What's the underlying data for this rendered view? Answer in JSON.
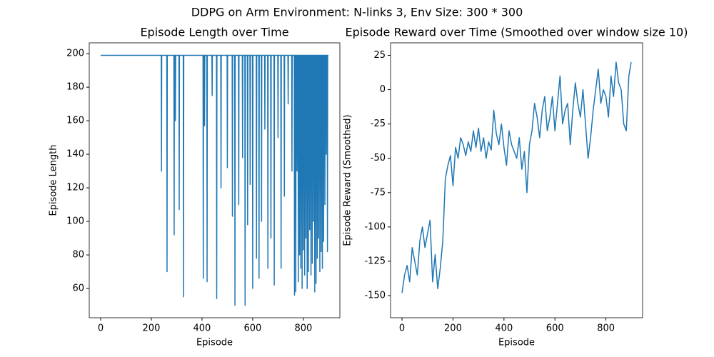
{
  "title": "DDPG on Arm Environment: N-links 3, Env Size: 300 * 300",
  "chart_data": [
    {
      "type": "line",
      "title": "Episode Length over Time",
      "x_label": "Episode",
      "y_label": "Episode Length",
      "xlim": [
        -45,
        944
      ],
      "ylim": [
        42.55,
        206.45
      ],
      "xticks": [
        0,
        200,
        400,
        600,
        800
      ],
      "yticks": [
        60,
        80,
        100,
        120,
        140,
        160,
        180,
        200
      ],
      "series": [
        {
          "color": "#1f77b4",
          "x": [
            0,
            239,
            240,
            241,
            261,
            262,
            263,
            289,
            290,
            291,
            294,
            295,
            296,
            309,
            310,
            311,
            326,
            327,
            328,
            404,
            405,
            406,
            409,
            410,
            411,
            419,
            420,
            421,
            439,
            440,
            441,
            457,
            458,
            459,
            474,
            475,
            476,
            499,
            500,
            501,
            519,
            520,
            521,
            529,
            530,
            531,
            544,
            545,
            546,
            559,
            560,
            561,
            569,
            570,
            571,
            579,
            580,
            581,
            589,
            590,
            591,
            599,
            600,
            601,
            614,
            615,
            616,
            624,
            625,
            626,
            634,
            635,
            636,
            647,
            648,
            649,
            659,
            660,
            661,
            671,
            672,
            673,
            684,
            685,
            686,
            699,
            700,
            701,
            711,
            712,
            713,
            724,
            725,
            726,
            739,
            740,
            741,
            754,
            755,
            756,
            764,
            765,
            766,
            769,
            770,
            771,
            774,
            775,
            776,
            779,
            780,
            781,
            784,
            785,
            786,
            789,
            790,
            791,
            794,
            795,
            796,
            799,
            800,
            801,
            804,
            805,
            806,
            809,
            810,
            811,
            814,
            815,
            816,
            819,
            820,
            821,
            824,
            825,
            826,
            829,
            830,
            831,
            834,
            835,
            836,
            839,
            840,
            841,
            844,
            845,
            846,
            849,
            850,
            851,
            854,
            855,
            856,
            859,
            860,
            861,
            864,
            865,
            866,
            869,
            870,
            871,
            874,
            875,
            876,
            879,
            880,
            881,
            884,
            885,
            886,
            889,
            890,
            891,
            894,
            895,
            896,
            899
          ],
          "values": [
            199,
            199,
            130,
            199,
            199,
            70,
            199,
            199,
            92,
            199,
            199,
            160,
            199,
            199,
            107,
            199,
            199,
            55,
            199,
            199,
            66,
            199,
            199,
            157,
            199,
            199,
            64,
            199,
            199,
            175,
            199,
            199,
            54,
            199,
            199,
            120,
            199,
            199,
            132,
            199,
            199,
            103,
            199,
            199,
            50,
            199,
            199,
            110,
            199,
            199,
            138,
            199,
            199,
            50,
            199,
            199,
            98,
            199,
            199,
            122,
            199,
            199,
            60,
            199,
            199,
            78,
            199,
            199,
            66,
            199,
            199,
            100,
            199,
            199,
            155,
            199,
            199,
            72,
            199,
            199,
            90,
            199,
            199,
            62,
            199,
            199,
            150,
            199,
            199,
            72,
            199,
            199,
            115,
            199,
            199,
            170,
            199,
            199,
            130,
            199,
            199,
            56,
            199,
            199,
            58,
            199,
            199,
            130,
            199,
            199,
            64,
            199,
            199,
            80,
            199,
            199,
            72,
            199,
            199,
            60,
            199,
            199,
            83,
            199,
            199,
            68,
            199,
            199,
            90,
            199,
            199,
            60,
            199,
            199,
            70,
            199,
            199,
            95,
            199,
            199,
            68,
            199,
            199,
            75,
            199,
            199,
            100,
            199,
            199,
            58,
            199,
            199,
            63,
            199,
            199,
            78,
            199,
            199,
            90,
            199,
            199,
            70,
            199,
            199,
            82,
            199,
            199,
            72,
            199,
            199,
            88,
            199,
            199,
            110,
            199,
            199,
            140,
            199,
            199,
            82,
            199,
            199
          ]
        }
      ]
    },
    {
      "type": "line",
      "title": "Episode Reward over Time (Smoothed over window size 10)",
      "x_label": "Episode",
      "y_label": "Episode Reward (Smoothed)",
      "xlim": [
        -45,
        944
      ],
      "ylim": [
        -166.1,
        34.1
      ],
      "xticks": [
        0,
        200,
        400,
        600,
        800
      ],
      "yticks": [
        -150,
        -125,
        -100,
        -75,
        -50,
        -25,
        0,
        25
      ],
      "series": [
        {
          "color": "#1f77b4",
          "x": [
            0,
            10,
            20,
            30,
            40,
            50,
            60,
            70,
            80,
            90,
            100,
            110,
            120,
            130,
            140,
            150,
            160,
            170,
            180,
            190,
            200,
            210,
            220,
            230,
            240,
            250,
            260,
            270,
            280,
            290,
            300,
            310,
            320,
            330,
            340,
            350,
            360,
            370,
            380,
            390,
            400,
            410,
            420,
            430,
            440,
            450,
            460,
            470,
            480,
            490,
            500,
            510,
            520,
            530,
            540,
            550,
            560,
            570,
            580,
            590,
            600,
            610,
            620,
            630,
            640,
            650,
            660,
            670,
            680,
            690,
            700,
            710,
            720,
            730,
            740,
            750,
            760,
            770,
            780,
            790,
            800,
            810,
            820,
            830,
            840,
            850,
            860,
            870,
            880,
            890,
            899
          ],
          "values": [
            -148,
            -135,
            -128,
            -140,
            -115,
            -125,
            -135,
            -110,
            -100,
            -115,
            -105,
            -95,
            -140,
            -120,
            -145,
            -130,
            -110,
            -65,
            -55,
            -48,
            -70,
            -42,
            -50,
            -35,
            -40,
            -48,
            -38,
            -45,
            -30,
            -42,
            -28,
            -45,
            -35,
            -50,
            -38,
            -44,
            -15,
            -32,
            -40,
            -25,
            -42,
            -55,
            -30,
            -40,
            -45,
            -50,
            -35,
            -58,
            -45,
            -75,
            -40,
            -30,
            -10,
            -20,
            -35,
            -15,
            -5,
            -30,
            -20,
            -5,
            -30,
            -10,
            10,
            -25,
            -15,
            -10,
            -40,
            -15,
            5,
            -10,
            -20,
            0,
            -25,
            -50,
            -35,
            -15,
            0,
            15,
            -10,
            0,
            -5,
            -20,
            10,
            -5,
            20,
            5,
            0,
            -25,
            -30,
            10,
            20
          ]
        }
      ]
    }
  ]
}
